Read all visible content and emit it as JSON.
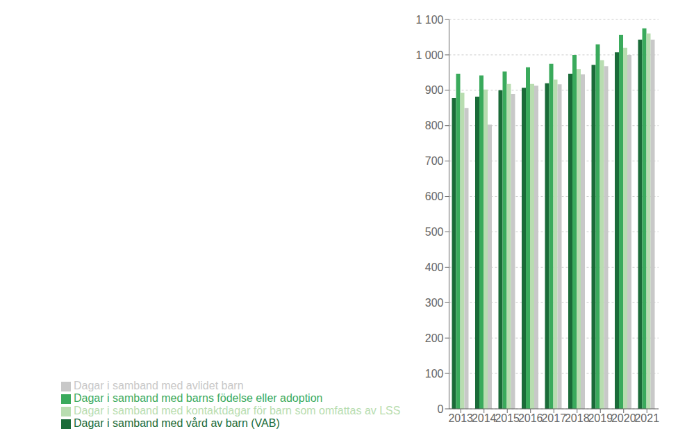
{
  "chart_data": {
    "type": "bar",
    "categories": [
      "2013",
      "2014",
      "2015",
      "2016",
      "2017",
      "2018",
      "2019",
      "2020",
      "2021"
    ],
    "series": [
      {
        "name": "Dagar i samband med vård av  barn (VAB)",
        "color": "#1a6b38",
        "values": [
          878,
          882,
          900,
          907,
          920,
          947,
          972,
          1007,
          1043
        ]
      },
      {
        "name": "Dagar i samband med barns födelse eller adoption",
        "color": "#3aaa5c",
        "values": [
          947,
          942,
          953,
          965,
          975,
          1000,
          1030,
          1057,
          1075
        ]
      },
      {
        "name": "Dagar i samband med kontaktdagar för barn som omfattas av LSS",
        "color": "#b8ddb0",
        "values": [
          893,
          902,
          918,
          918,
          930,
          960,
          985,
          1020,
          1060
        ]
      },
      {
        "name": "Dagar i samband med avlidet barn",
        "color": "#c8c8c8",
        "values": [
          850,
          803,
          890,
          913,
          917,
          945,
          968,
          1000,
          1043
        ]
      }
    ],
    "ylim": [
      0,
      1100
    ],
    "yticks": [
      0,
      100,
      200,
      300,
      400,
      500,
      600,
      700,
      800,
      900,
      {
        "value": 1000,
        "label": "1 000"
      },
      {
        "value": 1100,
        "label": "1 100"
      }
    ],
    "grid": true,
    "legend": "bottom"
  }
}
